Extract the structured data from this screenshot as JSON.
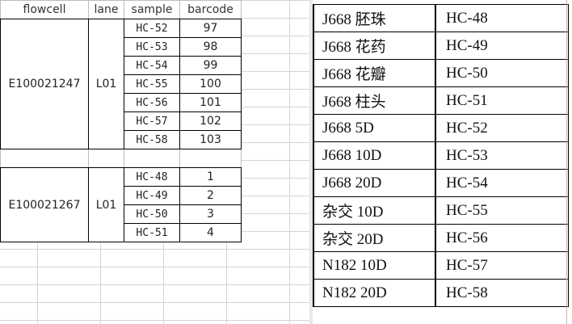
{
  "spreadsheet": {
    "headers": [
      "flowcell",
      "lane",
      "sample",
      "barcode"
    ],
    "groups": [
      {
        "flowcell": "E100021247",
        "lane": "L01",
        "rows": [
          {
            "sample": "HC-52",
            "barcode": "97"
          },
          {
            "sample": "HC-53",
            "barcode": "98"
          },
          {
            "sample": "HC-54",
            "barcode": "99"
          },
          {
            "sample": "HC-55",
            "barcode": "100"
          },
          {
            "sample": "HC-56",
            "barcode": "101"
          },
          {
            "sample": "HC-57",
            "barcode": "102"
          },
          {
            "sample": "HC-58",
            "barcode": "103"
          }
        ]
      },
      {
        "flowcell": "E100021267",
        "lane": "L01",
        "rows": [
          {
            "sample": "HC-48",
            "barcode": "1"
          },
          {
            "sample": "HC-49",
            "barcode": "2"
          },
          {
            "sample": "HC-50",
            "barcode": "3"
          },
          {
            "sample": "HC-51",
            "barcode": "4"
          }
        ]
      }
    ]
  },
  "document_table": {
    "rows": [
      {
        "name": "J668  胚珠",
        "code": "HC-48"
      },
      {
        "name": "J668  花药",
        "code": "HC-49"
      },
      {
        "name": "J668  花瓣",
        "code": "HC-50"
      },
      {
        "name": "J668  柱头",
        "code": "HC-51"
      },
      {
        "name": "J668 5D",
        "code": "HC-52"
      },
      {
        "name": "J668 10D",
        "code": "HC-53"
      },
      {
        "name": "J668 20D",
        "code": "HC-54"
      },
      {
        "name": "杂交  10D",
        "code": "HC-55"
      },
      {
        "name": "杂交  20D",
        "code": "HC-56"
      },
      {
        "name": "N182 10D",
        "code": "HC-57"
      },
      {
        "name": "N182 20D",
        "code": "HC-58"
      }
    ]
  }
}
